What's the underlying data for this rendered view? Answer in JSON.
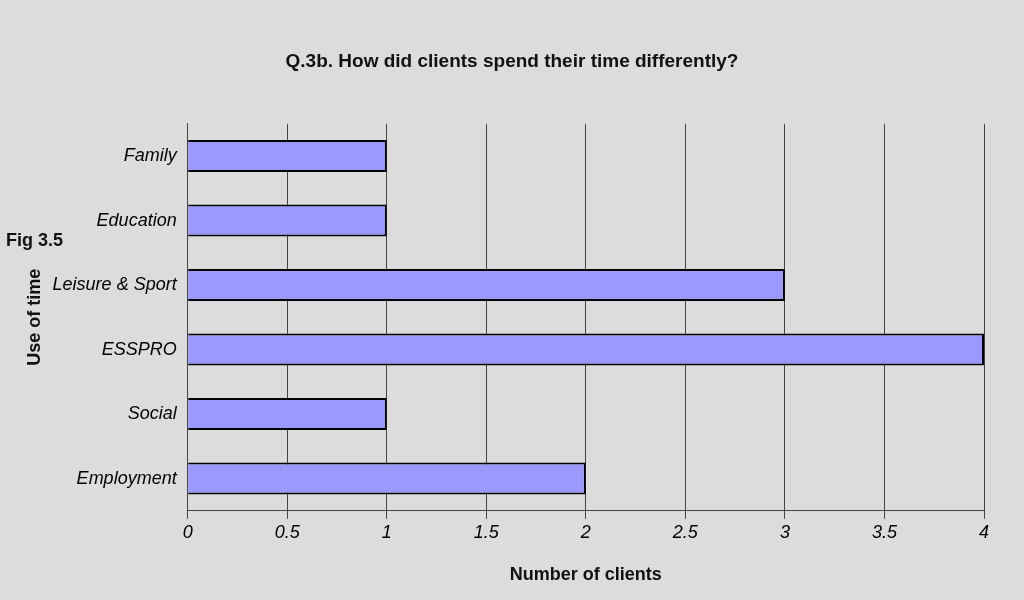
{
  "chart_data": {
    "type": "bar",
    "orientation": "horizontal",
    "title": "Q.3b.  How did clients spend their time differently?",
    "xlabel": "Number of clients",
    "ylabel": "Use of time",
    "categories": [
      "Family",
      "Education",
      "Leisure & Sport",
      "ESSPRO",
      "Social",
      "Employment"
    ],
    "values": [
      1,
      1,
      3,
      4,
      1,
      2
    ],
    "color": "#9999ff",
    "xlim": [
      0,
      4
    ],
    "xticks": [
      0,
      0.5,
      1,
      1.5,
      2,
      2.5,
      3,
      3.5,
      4
    ],
    "grid": "x",
    "legend": false,
    "annotations": [
      "Fig 3.5"
    ]
  }
}
